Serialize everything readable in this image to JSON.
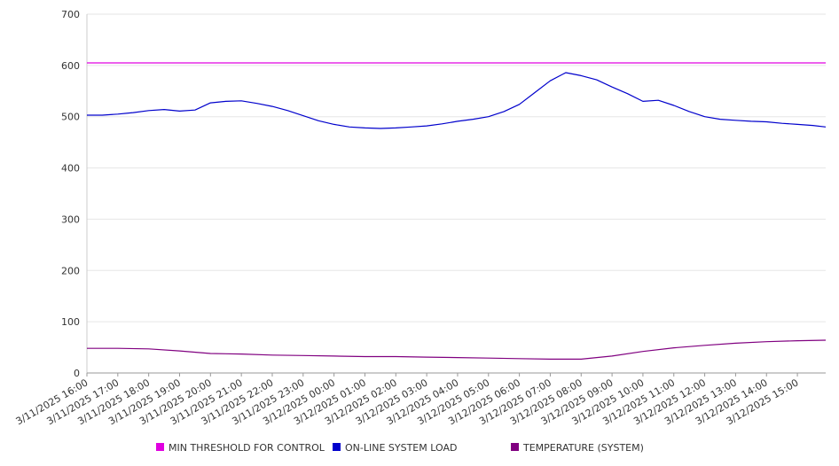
{
  "chart_data": {
    "type": "line",
    "title": "",
    "xlabel": "",
    "ylabel": "",
    "ylim": [
      0,
      700
    ],
    "yticks": [
      0,
      100,
      200,
      300,
      400,
      500,
      600,
      700
    ],
    "grid": "horizontal",
    "legend_position": "bottom",
    "xlim": [
      "3/11/2025 16:00",
      "3/12/2025 15:55"
    ],
    "xtick_labels": [
      "3/11/2025 16:00",
      "3/11/2025 17:00",
      "3/11/2025 18:00",
      "3/11/2025 19:00",
      "3/11/2025 20:00",
      "3/11/2025 21:00",
      "3/11/2025 22:00",
      "3/11/2025 23:00",
      "3/12/2025 00:00",
      "3/12/2025 01:00",
      "3/12/2025 02:00",
      "3/12/2025 03:00",
      "3/12/2025 04:00",
      "3/12/2025 05:00",
      "3/12/2025 06:00",
      "3/12/2025 07:00",
      "3/12/2025 08:00",
      "3/12/2025 09:00",
      "3/12/2025 10:00",
      "3/12/2025 11:00",
      "3/12/2025 12:00",
      "3/12/2025 13:00",
      "3/12/2025 14:00",
      "3/12/2025 15:00"
    ],
    "series": [
      {
        "name": "MIN THRESHOLD FOR CONTROL",
        "color": "#e000e0",
        "points": [
          [
            "3/11/2025 16:00",
            605
          ],
          [
            "3/12/2025 15:55",
            605
          ]
        ]
      },
      {
        "name": "ON-LINE SYSTEM LOAD",
        "color": "#0000cc",
        "points": [
          [
            "3/11/2025 16:00",
            503
          ],
          [
            "3/11/2025 16:30",
            503
          ],
          [
            "3/11/2025 17:00",
            505
          ],
          [
            "3/11/2025 17:30",
            508
          ],
          [
            "3/11/2025 18:00",
            512
          ],
          [
            "3/11/2025 18:30",
            514
          ],
          [
            "3/11/2025 19:00",
            511
          ],
          [
            "3/11/2025 19:30",
            513
          ],
          [
            "3/11/2025 20:00",
            527
          ],
          [
            "3/11/2025 20:30",
            530
          ],
          [
            "3/11/2025 21:00",
            531
          ],
          [
            "3/11/2025 21:30",
            526
          ],
          [
            "3/11/2025 22:00",
            520
          ],
          [
            "3/11/2025 22:30",
            512
          ],
          [
            "3/11/2025 23:00",
            502
          ],
          [
            "3/11/2025 23:30",
            492
          ],
          [
            "3/12/2025 00:00",
            485
          ],
          [
            "3/12/2025 00:30",
            480
          ],
          [
            "3/12/2025 01:00",
            478
          ],
          [
            "3/12/2025 01:30",
            477
          ],
          [
            "3/12/2025 02:00",
            478
          ],
          [
            "3/12/2025 02:30",
            480
          ],
          [
            "3/12/2025 03:00",
            482
          ],
          [
            "3/12/2025 03:30",
            486
          ],
          [
            "3/12/2025 04:00",
            491
          ],
          [
            "3/12/2025 04:30",
            495
          ],
          [
            "3/12/2025 05:00",
            500
          ],
          [
            "3/12/2025 05:30",
            510
          ],
          [
            "3/12/2025 06:00",
            524
          ],
          [
            "3/12/2025 06:30",
            547
          ],
          [
            "3/12/2025 07:00",
            570
          ],
          [
            "3/12/2025 07:30",
            586
          ],
          [
            "3/12/2025 08:00",
            580
          ],
          [
            "3/12/2025 08:30",
            572
          ],
          [
            "3/12/2025 09:00",
            558
          ],
          [
            "3/12/2025 09:30",
            545
          ],
          [
            "3/12/2025 10:00",
            530
          ],
          [
            "3/12/2025 10:30",
            532
          ],
          [
            "3/12/2025 11:00",
            522
          ],
          [
            "3/12/2025 11:30",
            510
          ],
          [
            "3/12/2025 12:00",
            500
          ],
          [
            "3/12/2025 12:30",
            495
          ],
          [
            "3/12/2025 13:00",
            493
          ],
          [
            "3/12/2025 13:30",
            491
          ],
          [
            "3/12/2025 14:00",
            490
          ],
          [
            "3/12/2025 14:30",
            487
          ],
          [
            "3/12/2025 15:00",
            485
          ],
          [
            "3/12/2025 15:30",
            483
          ],
          [
            "3/12/2025 15:55",
            480
          ]
        ]
      },
      {
        "name": "TEMPERATURE (SYSTEM)",
        "color": "#800080",
        "points": [
          [
            "3/11/2025 16:00",
            48
          ],
          [
            "3/11/2025 17:00",
            48
          ],
          [
            "3/11/2025 18:00",
            47
          ],
          [
            "3/11/2025 19:00",
            43
          ],
          [
            "3/11/2025 20:00",
            38
          ],
          [
            "3/11/2025 21:00",
            37
          ],
          [
            "3/11/2025 22:00",
            35
          ],
          [
            "3/11/2025 23:00",
            34
          ],
          [
            "3/12/2025 00:00",
            33
          ],
          [
            "3/12/2025 01:00",
            32
          ],
          [
            "3/12/2025 02:00",
            32
          ],
          [
            "3/12/2025 03:00",
            31
          ],
          [
            "3/12/2025 04:00",
            30
          ],
          [
            "3/12/2025 05:00",
            29
          ],
          [
            "3/12/2025 06:00",
            28
          ],
          [
            "3/12/2025 07:00",
            27
          ],
          [
            "3/12/2025 08:00",
            27
          ],
          [
            "3/12/2025 09:00",
            33
          ],
          [
            "3/12/2025 10:00",
            42
          ],
          [
            "3/12/2025 11:00",
            49
          ],
          [
            "3/12/2025 12:00",
            54
          ],
          [
            "3/12/2025 13:00",
            58
          ],
          [
            "3/12/2025 14:00",
            61
          ],
          [
            "3/12/2025 15:00",
            63
          ],
          [
            "3/12/2025 15:55",
            64
          ]
        ]
      }
    ]
  }
}
